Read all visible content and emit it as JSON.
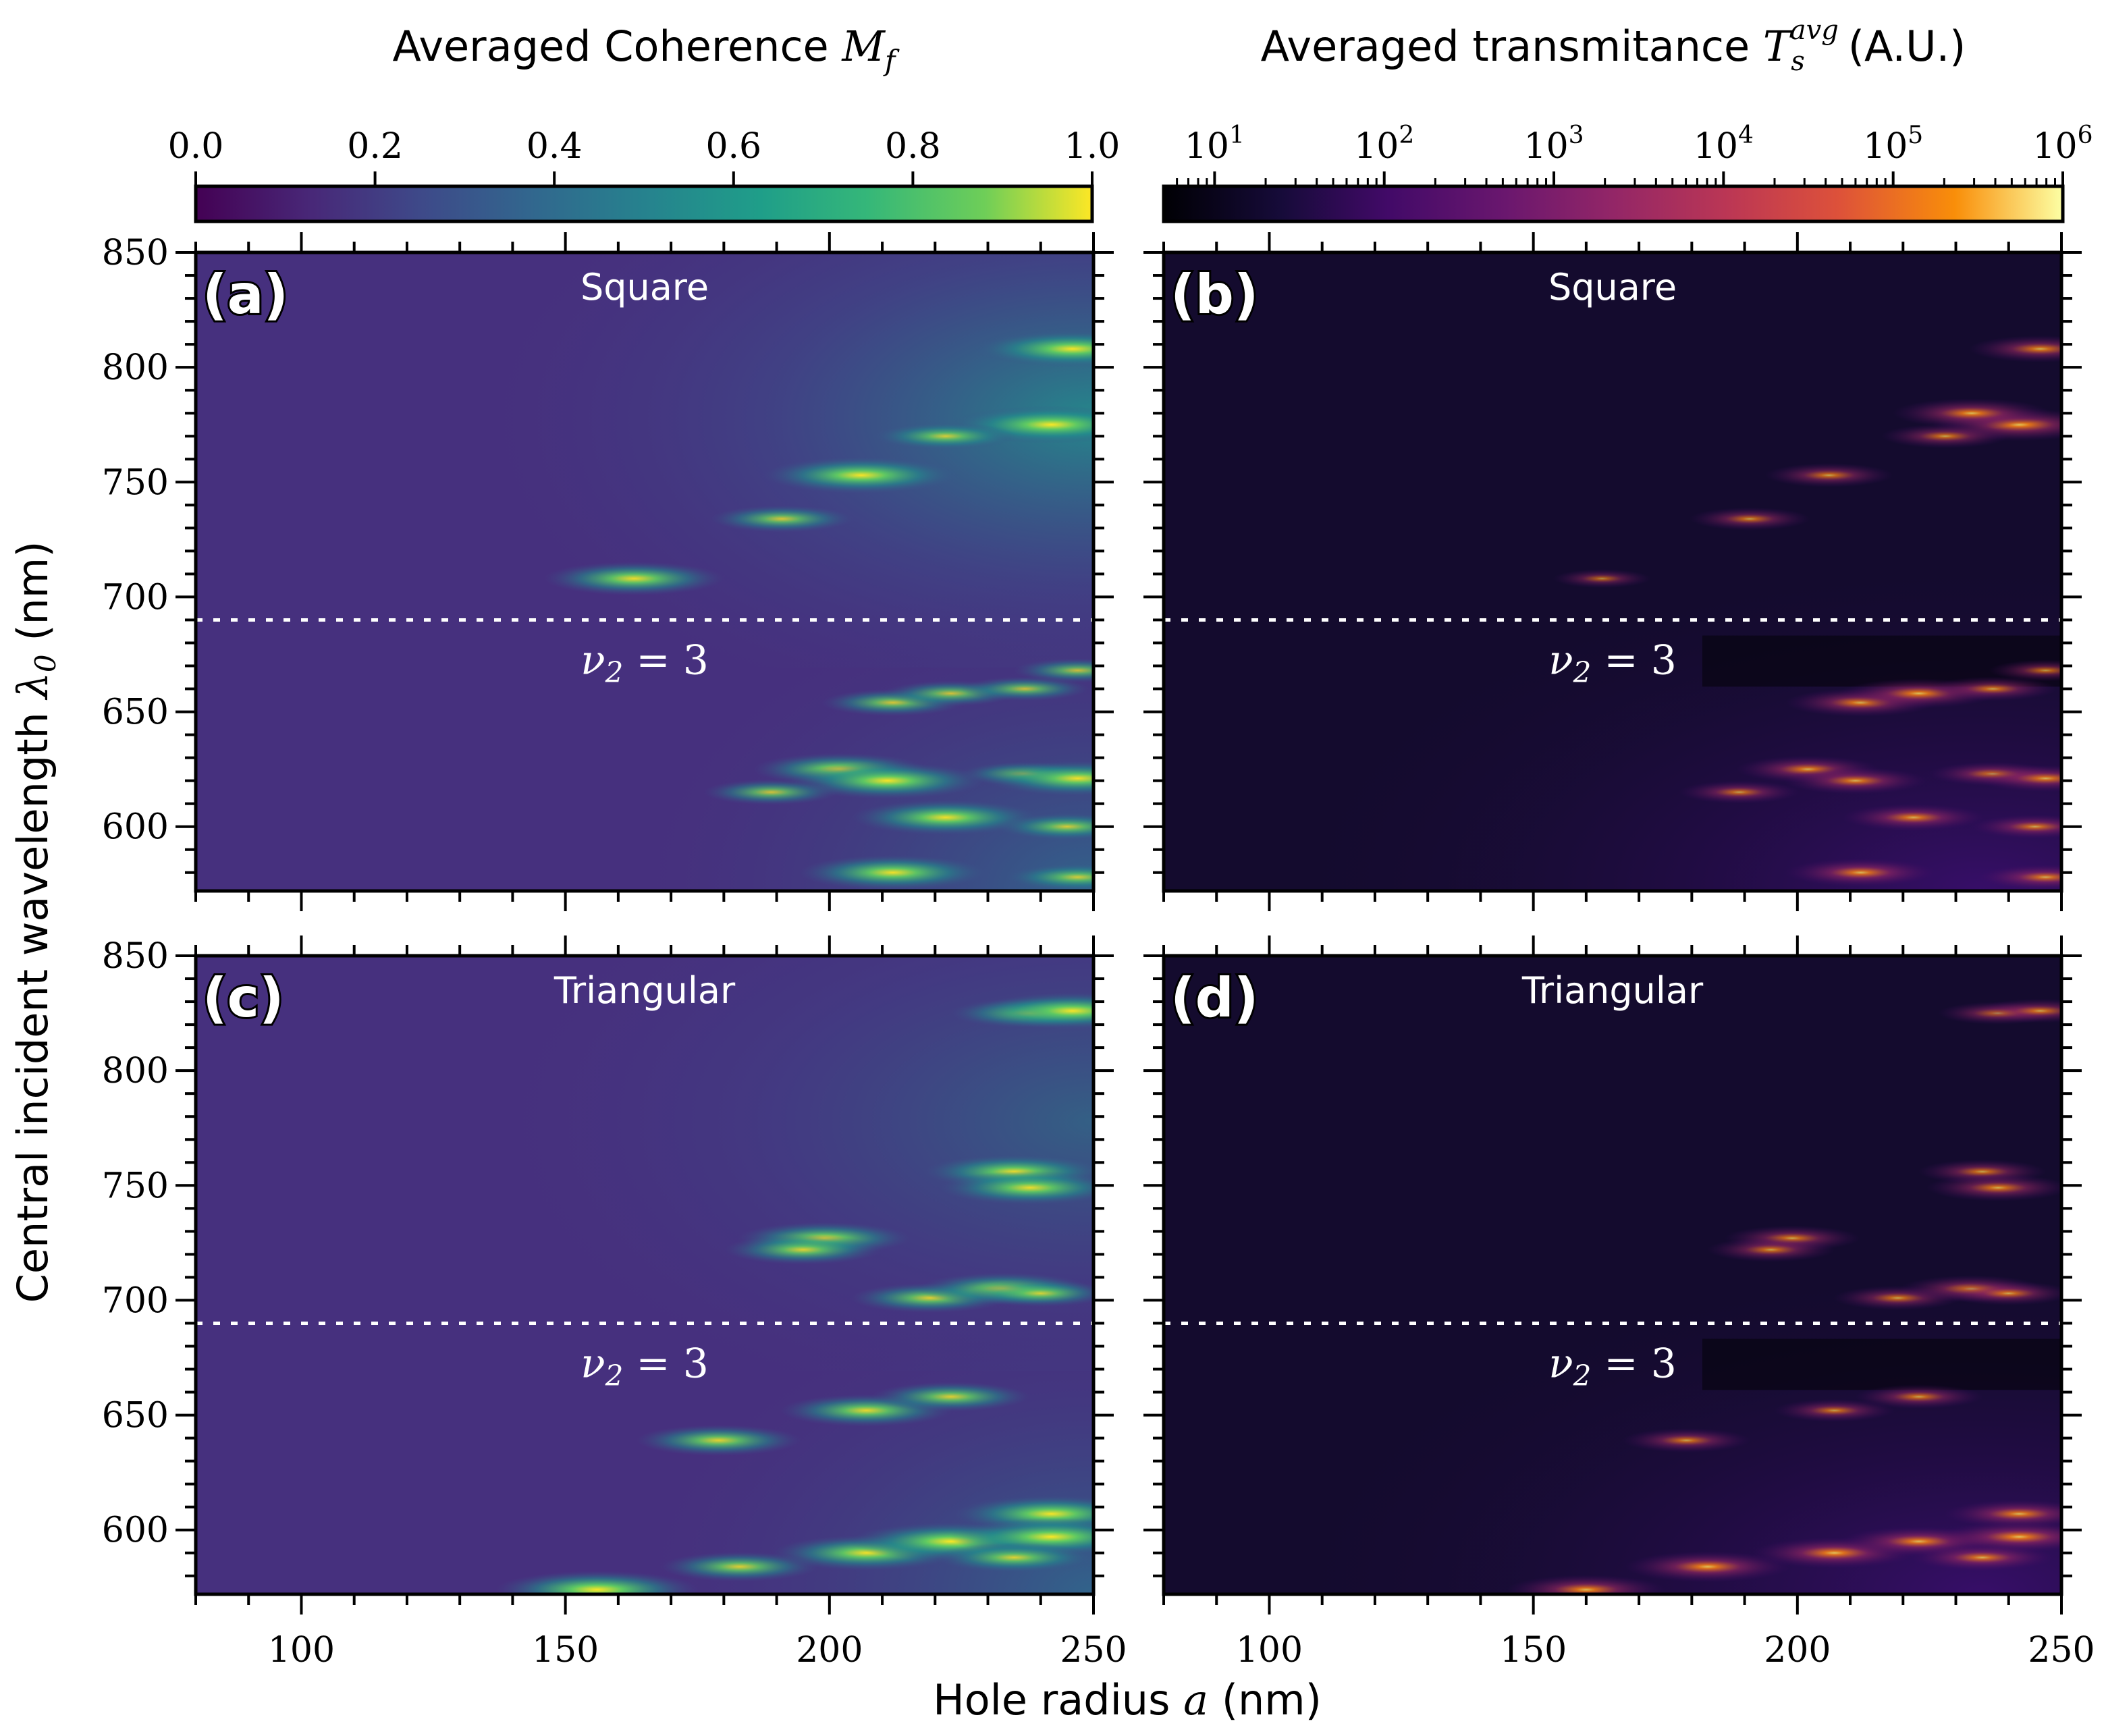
{
  "figure": {
    "colorbar_left": {
      "title": "Averaged Coherence",
      "math": "M",
      "math_sub": "f",
      "range": [
        0.0,
        1.0
      ],
      "ticks": [
        0.0,
        0.2,
        0.4,
        0.6,
        0.8,
        1.0
      ],
      "tick_labels": [
        "0.0",
        "0.2",
        "0.4",
        "0.6",
        "0.8",
        "1.0"
      ],
      "colormap": "viridis"
    },
    "colorbar_right": {
      "title": "Averaged transmitance",
      "math": "T",
      "math_sub": "s",
      "math_sup": "avg",
      "unit": "(A.U.)",
      "range_log10": [
        0.7,
        6
      ],
      "ticks": [
        {
          "base": "10",
          "exp": "1",
          "log": 1
        },
        {
          "base": "10",
          "exp": "2",
          "log": 2
        },
        {
          "base": "10",
          "exp": "3",
          "log": 3
        },
        {
          "base": "10",
          "exp": "4",
          "log": 4
        },
        {
          "base": "10",
          "exp": "5",
          "log": 5
        },
        {
          "base": "10",
          "exp": "6",
          "log": 6
        }
      ],
      "colormap": "inferno"
    },
    "ylabel": "Central incident wavelength",
    "ylabel_math": "λ",
    "ylabel_sub": "0",
    "ylabel_unit": "(nm)",
    "xlabel": "Hole radius",
    "xlabel_math": "a",
    "xlabel_unit": "(nm)",
    "annotation": {
      "nu": "ν",
      "sub": "2",
      "rest": " = 3"
    },
    "colors": {
      "viridis_base": "#46307e",
      "inferno_base": "#140b2e",
      "dashed_line": "#ffffff"
    }
  },
  "chart_data": [
    {
      "type": "heatmap",
      "panel": "(a)",
      "lattice": "Square",
      "quantity": "coherence",
      "xlim": [
        80,
        250
      ],
      "ylim": [
        572,
        850
      ],
      "xticks": [
        100,
        150,
        200,
        250
      ],
      "xtick_labels": [
        "100",
        "150",
        "200",
        "250"
      ],
      "yticks": [
        600,
        650,
        700,
        750,
        800,
        850
      ],
      "ytick_labels": [
        "600",
        "650",
        "700",
        "750",
        "800",
        "850"
      ],
      "dashed_line_lambda": 690,
      "hotspots": [
        [
          246,
          808,
          0.95
        ],
        [
          242,
          775,
          1.0
        ],
        [
          222,
          770,
          0.6
        ],
        [
          206,
          753,
          0.95
        ],
        [
          191,
          734,
          0.6
        ],
        [
          163,
          708,
          0.85
        ],
        [
          212,
          654,
          0.6
        ],
        [
          223,
          658,
          0.55
        ],
        [
          237,
          660,
          0.5
        ],
        [
          247,
          668,
          0.5
        ],
        [
          202,
          625,
          0.8
        ],
        [
          211,
          620,
          0.95
        ],
        [
          189,
          615,
          0.55
        ],
        [
          237,
          623,
          0.5
        ],
        [
          247,
          621,
          0.9
        ],
        [
          222,
          604,
          0.9
        ],
        [
          245,
          600,
          0.6
        ],
        [
          212,
          580,
          0.9
        ],
        [
          247,
          578,
          0.6
        ]
      ]
    },
    {
      "type": "heatmap",
      "panel": "(b)",
      "lattice": "Square",
      "quantity": "transmittance",
      "xlim": [
        80,
        250
      ],
      "ylim": [
        572,
        850
      ],
      "xticks": [
        100,
        150,
        200,
        250
      ],
      "xtick_labels": [
        "100",
        "150",
        "200",
        "250"
      ],
      "yticks": [
        600,
        650,
        700,
        750,
        800,
        850
      ],
      "ytick_labels": [],
      "dashed_line_lambda": 690,
      "hotspots": [
        [
          246,
          808,
          0.6
        ],
        [
          242,
          775,
          0.8
        ],
        [
          233,
          780,
          0.7
        ],
        [
          228,
          770,
          0.5
        ],
        [
          206,
          753,
          0.5
        ],
        [
          191,
          734,
          0.45
        ],
        [
          163,
          708,
          0.3
        ],
        [
          212,
          654,
          0.65
        ],
        [
          223,
          658,
          0.7
        ],
        [
          237,
          660,
          0.5
        ],
        [
          247,
          668,
          0.4
        ],
        [
          202,
          625,
          0.6
        ],
        [
          211,
          620,
          0.6
        ],
        [
          189,
          615,
          0.45
        ],
        [
          237,
          623,
          0.5
        ],
        [
          247,
          621,
          0.6
        ],
        [
          222,
          604,
          0.6
        ],
        [
          245,
          600,
          0.5
        ],
        [
          212,
          580,
          0.65
        ],
        [
          247,
          578,
          0.55
        ]
      ]
    },
    {
      "type": "heatmap",
      "panel": "(c)",
      "lattice": "Triangular",
      "quantity": "coherence",
      "xlim": [
        80,
        250
      ],
      "ylim": [
        572,
        850
      ],
      "xticks": [
        100,
        150,
        200,
        250
      ],
      "xtick_labels": [
        "100",
        "150",
        "200",
        "250"
      ],
      "yticks": [
        600,
        650,
        700,
        750,
        800,
        850
      ],
      "ytick_labels": [
        "600",
        "650",
        "700",
        "750",
        "800",
        "850"
      ],
      "dashed_line_lambda": 690,
      "hotspots": [
        [
          238,
          825,
          0.7
        ],
        [
          246,
          826,
          0.95
        ],
        [
          235,
          756,
          0.85
        ],
        [
          238,
          749,
          0.85
        ],
        [
          199,
          727,
          0.8
        ],
        [
          195,
          722,
          0.7
        ],
        [
          219,
          701,
          0.7
        ],
        [
          233,
          705,
          0.8
        ],
        [
          240,
          703,
          0.6
        ],
        [
          207,
          652,
          0.8
        ],
        [
          223,
          658,
          0.7
        ],
        [
          179,
          639,
          0.75
        ],
        [
          183,
          584,
          0.7
        ],
        [
          207,
          590,
          0.9
        ],
        [
          223,
          595,
          1.0
        ],
        [
          242,
          607,
          0.95
        ],
        [
          242,
          597,
          1.0
        ],
        [
          235,
          588,
          0.7
        ],
        [
          156,
          574,
          1.0
        ]
      ]
    },
    {
      "type": "heatmap",
      "panel": "(d)",
      "lattice": "Triangular",
      "quantity": "transmittance",
      "xlim": [
        80,
        250
      ],
      "ylim": [
        572,
        850
      ],
      "xticks": [
        100,
        150,
        200,
        250
      ],
      "xtick_labels": [
        "100",
        "150",
        "200",
        "250"
      ],
      "yticks": [
        600,
        650,
        700,
        750,
        800,
        850
      ],
      "ytick_labels": [],
      "dashed_line_lambda": 690,
      "hotspots": [
        [
          238,
          825,
          0.45
        ],
        [
          246,
          826,
          0.5
        ],
        [
          235,
          756,
          0.5
        ],
        [
          238,
          749,
          0.6
        ],
        [
          199,
          727,
          0.55
        ],
        [
          195,
          722,
          0.5
        ],
        [
          219,
          701,
          0.5
        ],
        [
          233,
          705,
          0.6
        ],
        [
          240,
          703,
          0.5
        ],
        [
          207,
          652,
          0.45
        ],
        [
          223,
          658,
          0.5
        ],
        [
          179,
          639,
          0.5
        ],
        [
          183,
          584,
          0.75
        ],
        [
          207,
          590,
          0.75
        ],
        [
          223,
          595,
          0.7
        ],
        [
          242,
          607,
          0.65
        ],
        [
          242,
          597,
          0.75
        ],
        [
          235,
          588,
          0.6
        ],
        [
          160,
          574,
          0.7
        ]
      ]
    }
  ]
}
